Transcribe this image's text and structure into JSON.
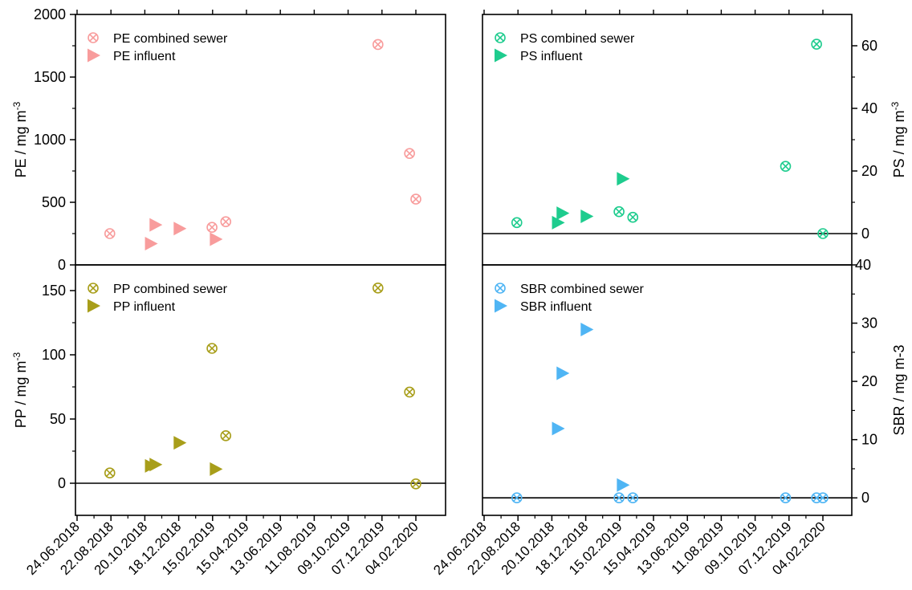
{
  "x_dates": [
    "24.06.2018",
    "22.08.2018",
    "20.10.2018",
    "18.12.2018",
    "15.02.2019",
    "15.04.2019",
    "13.06.2019",
    "11.08.2019",
    "09.10.2019",
    "07.12.2019",
    "04.02.2020"
  ],
  "colors": {
    "PE": "#F89C9C",
    "PS": "#1ECC8E",
    "PP": "#A89E1A",
    "SBR": "#4FB5F4"
  },
  "chart_data": [
    {
      "type": "scatter",
      "panel": "top-left",
      "ylabel": "PE / mg m-3",
      "ylabel_main": "PE / mg m",
      "ylabel_sup": "-3",
      "ylim": [
        0,
        2000
      ],
      "y_ticks": [
        0,
        500,
        1000,
        1500,
        2000
      ],
      "y_ticks_text": [
        "0",
        "500",
        "1000",
        "1500",
        "2000"
      ],
      "y_axis_side": "left",
      "zero_line": false,
      "legend_position": "top-left",
      "series": [
        {
          "name": "PE combined sewer",
          "marker": "circle-x",
          "points": [
            [
              "2018-08-20",
              250
            ],
            [
              "2019-02-14",
              300
            ],
            [
              "2019-03-10",
              345
            ],
            [
              "2019-11-30",
              1760
            ],
            [
              "2020-01-24",
              890
            ],
            [
              "2020-02-04",
              525
            ]
          ]
        },
        {
          "name": "PE influent",
          "marker": "triangle-right",
          "points": [
            [
              "2018-10-30",
              170
            ],
            [
              "2018-11-07",
              320
            ],
            [
              "2018-12-19",
              290
            ],
            [
              "2019-02-20",
              205
            ]
          ]
        }
      ]
    },
    {
      "type": "scatter",
      "panel": "top-right",
      "ylabel": "PS / mg m-3",
      "ylabel_main": "PS / mg m",
      "ylabel_sup": "-3",
      "ylim": [
        -10,
        70
      ],
      "y_ticks": [
        0,
        20,
        40,
        60
      ],
      "y_ticks_text": [
        "0",
        "20",
        "40",
        "60"
      ],
      "y_axis_side": "right",
      "zero_line": true,
      "legend_position": "top-left",
      "series": [
        {
          "name": "PS combined sewer",
          "marker": "circle-x",
          "points": [
            [
              "2018-08-20",
              3.5
            ],
            [
              "2019-02-14",
              7
            ],
            [
              "2019-03-10",
              5.2
            ],
            [
              "2019-12-01",
              21.5
            ],
            [
              "2020-01-24",
              60.5
            ],
            [
              "2020-02-04",
              0
            ]
          ]
        },
        {
          "name": "PS influent",
          "marker": "triangle-right",
          "points": [
            [
              "2018-10-30",
              3.5
            ],
            [
              "2018-11-07",
              6.5
            ],
            [
              "2018-12-19",
              5.5
            ],
            [
              "2019-02-20",
              17.5
            ]
          ]
        }
      ]
    },
    {
      "type": "scatter",
      "panel": "bottom-left",
      "ylabel": "PP / mg m-3",
      "ylabel_main": "PP / mg m",
      "ylabel_sup": "-3",
      "ylim": [
        -25,
        170
      ],
      "y_ticks": [
        0,
        50,
        100,
        150
      ],
      "y_ticks_text": [
        "0",
        "50",
        "100",
        "150"
      ],
      "y_axis_side": "left",
      "zero_line": true,
      "legend_position": "top-left",
      "series": [
        {
          "name": "PP combined sewer",
          "marker": "circle-x",
          "points": [
            [
              "2018-08-20",
              8
            ],
            [
              "2019-02-14",
              105
            ],
            [
              "2019-03-10",
              37
            ],
            [
              "2019-11-30",
              152
            ],
            [
              "2020-01-24",
              71
            ],
            [
              "2020-02-04",
              -0.5
            ]
          ]
        },
        {
          "name": "PP influent",
          "marker": "triangle-right",
          "points": [
            [
              "2018-10-30",
              13.5
            ],
            [
              "2018-11-07",
              14.5
            ],
            [
              "2018-12-19",
              31.5
            ],
            [
              "2019-02-20",
              11
            ]
          ]
        }
      ]
    },
    {
      "type": "scatter",
      "panel": "bottom-right",
      "ylabel": "SBR / mg m-3",
      "ylabel_main": "SBR / mg m-3",
      "ylabel_sup": "",
      "ylim": [
        -3,
        40
      ],
      "y_ticks": [
        0,
        10,
        20,
        30,
        40
      ],
      "y_ticks_text": [
        "0",
        "10",
        "20",
        "30",
        ""
      ],
      "top_tick_text": "40",
      "y_axis_side": "right",
      "zero_line": true,
      "legend_position": "top-left",
      "series": [
        {
          "name": "SBR combined sewer",
          "marker": "circle-x",
          "points": [
            [
              "2018-08-20",
              0
            ],
            [
              "2019-02-14",
              0
            ],
            [
              "2019-03-10",
              0
            ],
            [
              "2019-12-01",
              0
            ],
            [
              "2020-01-24",
              0
            ],
            [
              "2020-02-04",
              0
            ]
          ]
        },
        {
          "name": "SBR influent",
          "marker": "triangle-right",
          "points": [
            [
              "2018-10-30",
              11.9
            ],
            [
              "2018-11-07",
              21.4
            ],
            [
              "2018-12-19",
              28.9
            ],
            [
              "2019-02-20",
              2.2
            ]
          ]
        }
      ]
    }
  ]
}
